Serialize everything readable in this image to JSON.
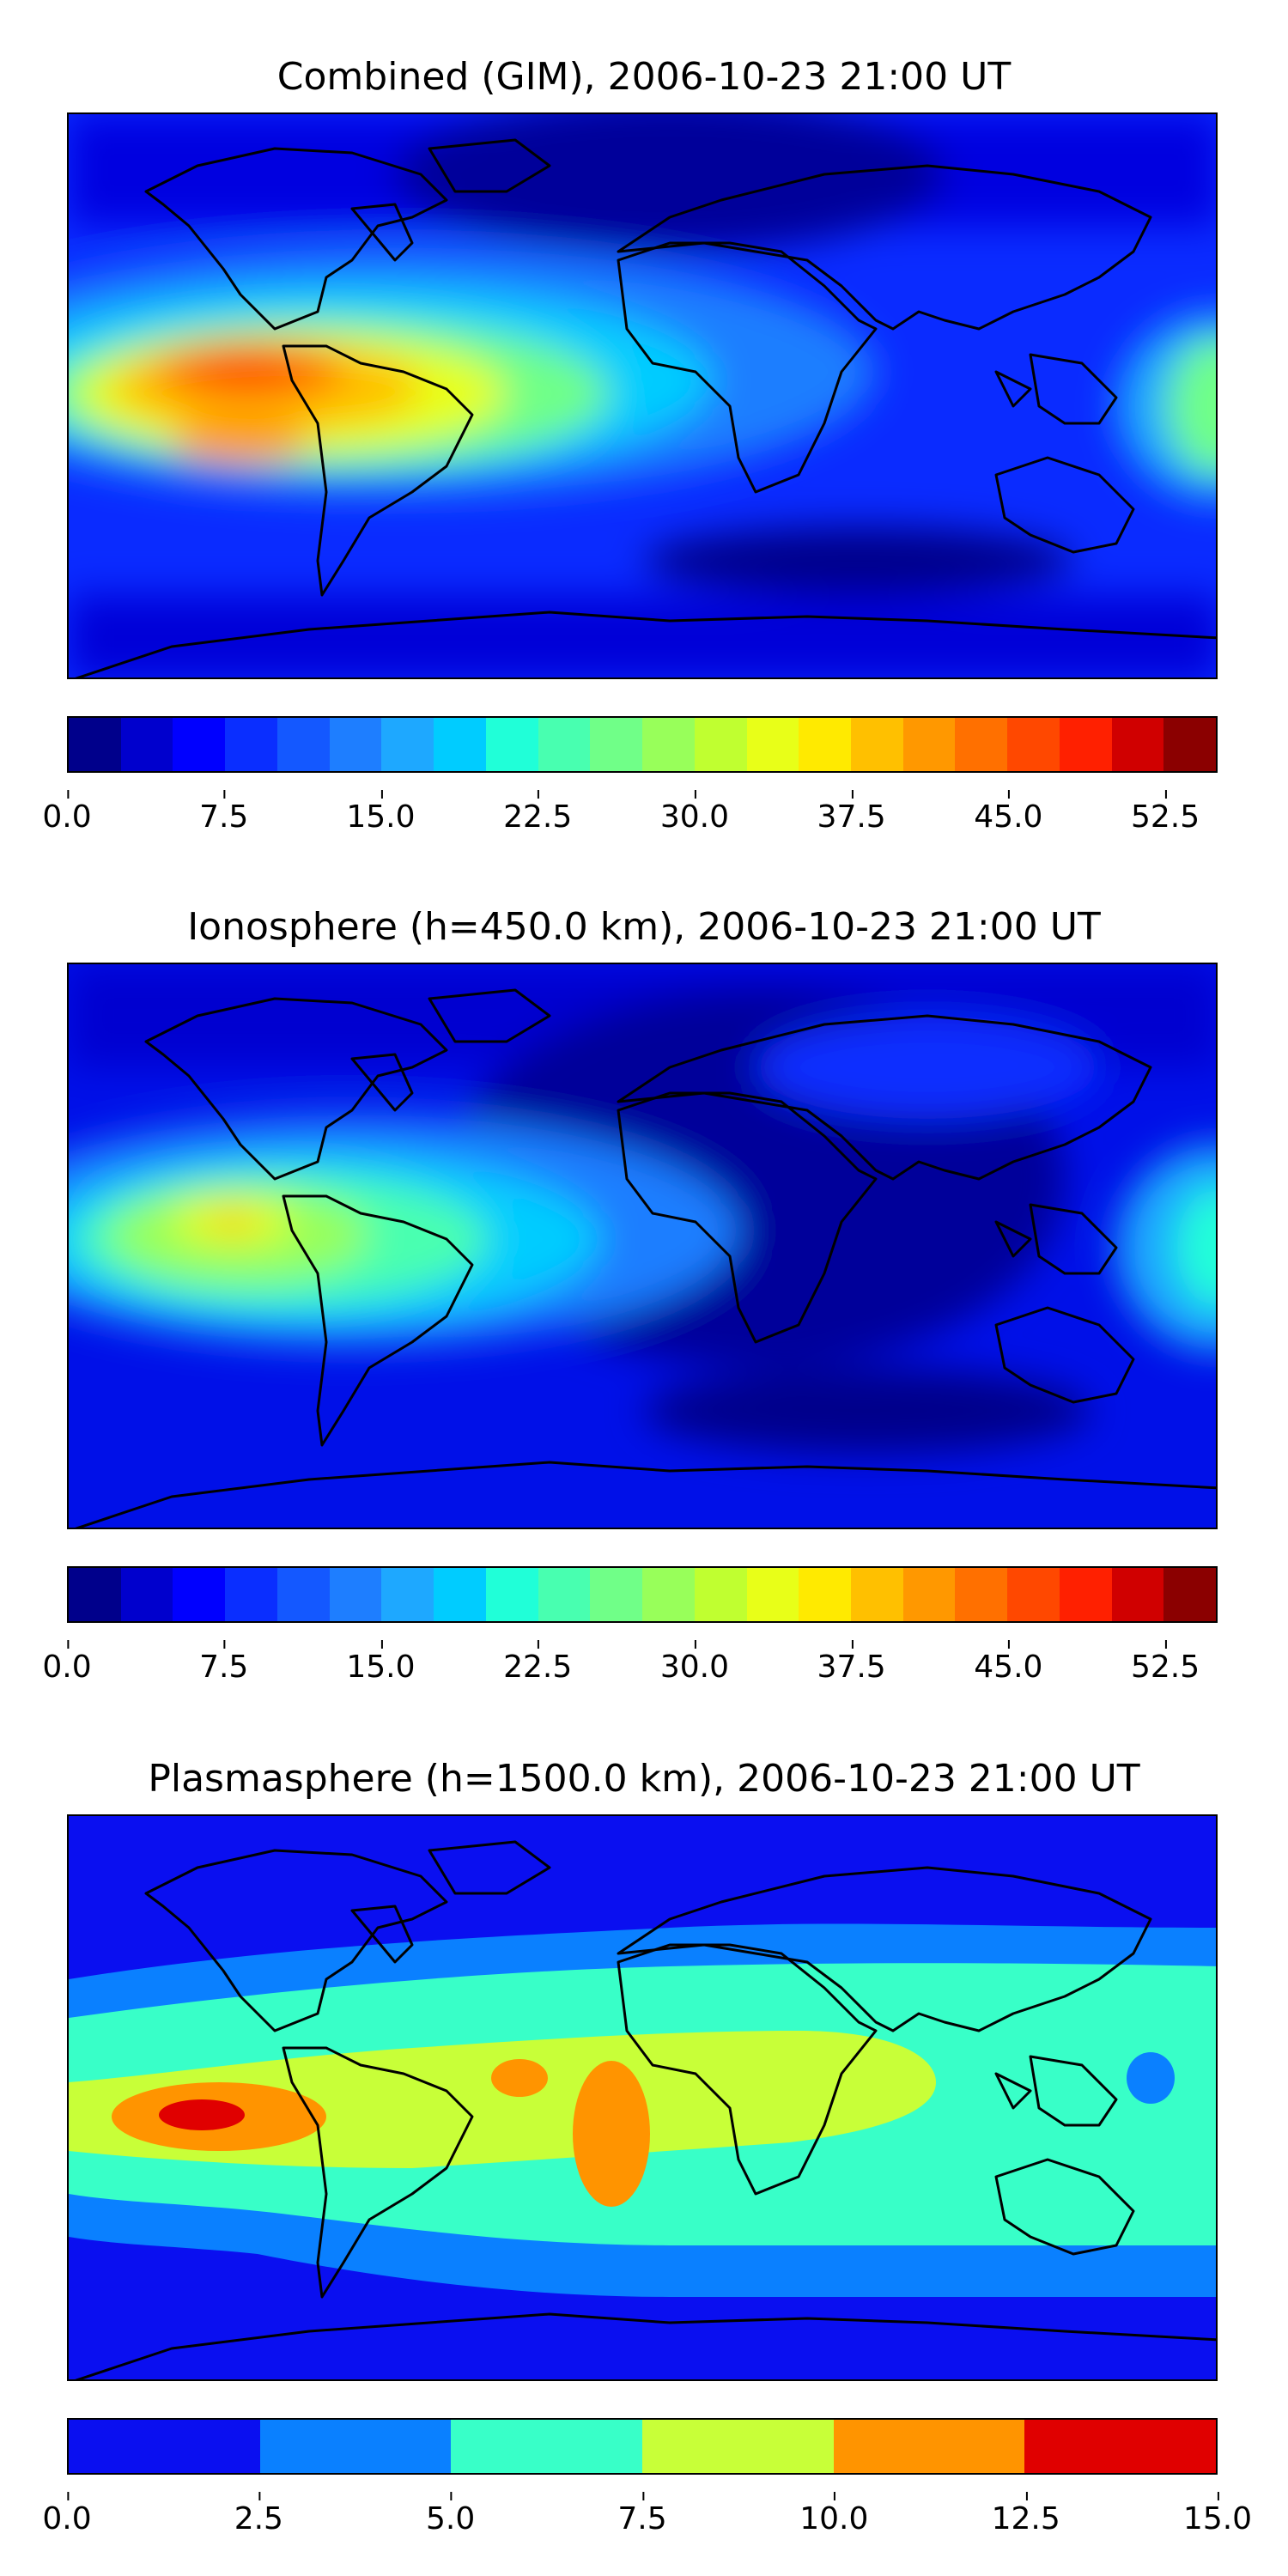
{
  "panels": [
    {
      "title": "Combined (GIM), 2006-10-23 21:00 UT",
      "colorbar": {
        "ticks": [
          "0.0",
          "7.5",
          "15.0",
          "22.5",
          "30.0",
          "37.5",
          "45.0",
          "52.5"
        ],
        "colors": [
          "#00008b",
          "#0000cd",
          "#0000ff",
          "#0a2eff",
          "#1458ff",
          "#1e7eff",
          "#1ea8ff",
          "#00ccff",
          "#20ffd8",
          "#48ffb0",
          "#70ff88",
          "#98ff5a",
          "#c0ff30",
          "#e8ff18",
          "#ffea00",
          "#ffc000",
          "#ff9800",
          "#ff7000",
          "#ff4800",
          "#ff2000",
          "#d00000",
          "#8b0000"
        ]
      }
    },
    {
      "title": "Ionosphere  (h=450.0 km), 2006-10-23 21:00 UT",
      "colorbar": {
        "ticks": [
          "0.0",
          "7.5",
          "15.0",
          "22.5",
          "30.0",
          "37.5",
          "45.0",
          "52.5"
        ],
        "colors": [
          "#00008b",
          "#0000cd",
          "#0000ff",
          "#0a2eff",
          "#1458ff",
          "#1e7eff",
          "#1ea8ff",
          "#00ccff",
          "#20ffd8",
          "#48ffb0",
          "#70ff88",
          "#98ff5a",
          "#c0ff30",
          "#e8ff18",
          "#ffea00",
          "#ffc000",
          "#ff9800",
          "#ff7000",
          "#ff4800",
          "#ff2000",
          "#d00000",
          "#8b0000"
        ]
      }
    },
    {
      "title": "Plasmasphere (h=1500.0 km), 2006-10-23 21:00 UT",
      "colorbar": {
        "ticks": [
          "0.0",
          "2.5",
          "5.0",
          "7.5",
          "10.0",
          "12.5",
          "15.0"
        ],
        "colors": [
          "#0a0ff0",
          "#0a80ff",
          "#38ffc8",
          "#c8ff38",
          "#ff9400",
          "#e00000"
        ]
      }
    }
  ]
}
